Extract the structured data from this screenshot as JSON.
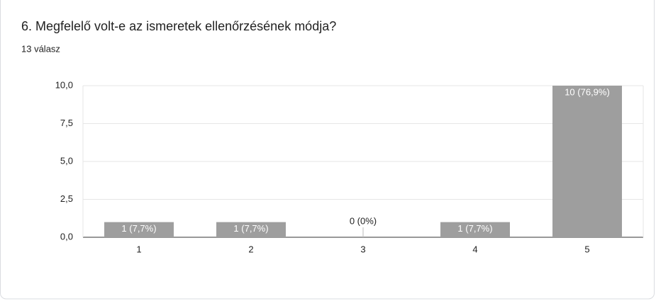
{
  "chart_data": {
    "type": "bar",
    "title": "6. Megfelelő volt-e az ismeretek ellenőrzésének módja?",
    "subtitle": "13 válasz",
    "categories": [
      "1",
      "2",
      "3",
      "4",
      "5"
    ],
    "values": [
      1,
      1,
      0,
      1,
      10
    ],
    "value_labels": [
      "1 (7,7%)",
      "1 (7,7%)",
      "0 (0%)",
      "1 (7,7%)",
      "10 (76,9%)"
    ],
    "color": "#9e9e9e",
    "ylim": [
      0,
      10
    ],
    "yticks": [
      {
        "value": 0,
        "label": "0,0"
      },
      {
        "value": 2.5,
        "label": "2,5"
      },
      {
        "value": 5,
        "label": "5,0"
      },
      {
        "value": 7.5,
        "label": "7,5"
      },
      {
        "value": 10,
        "label": "10,0"
      }
    ],
    "grid": true
  }
}
